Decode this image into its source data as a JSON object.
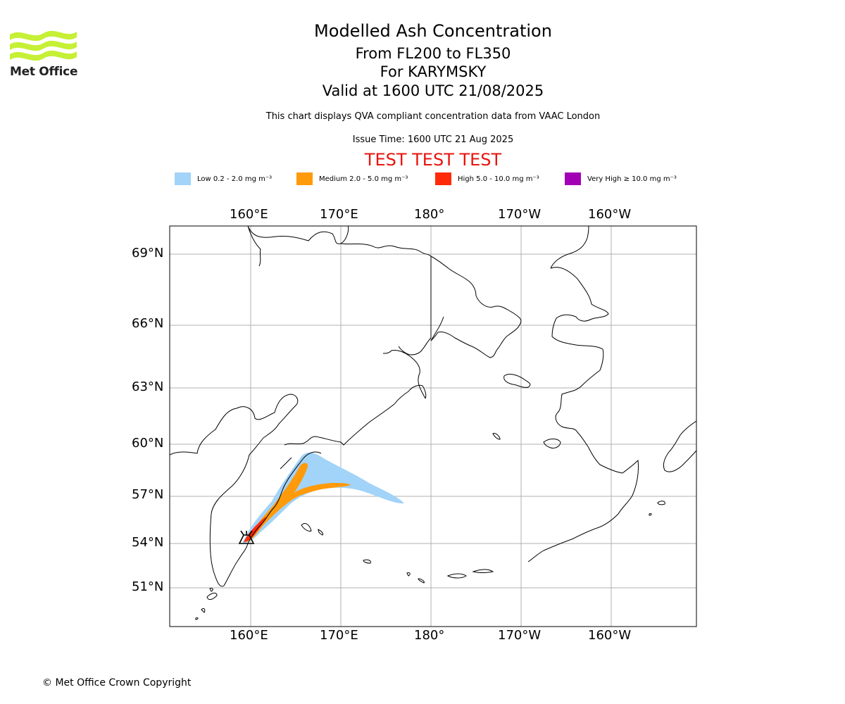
{
  "header": {
    "title": "Modelled Ash Concentration",
    "levels": "From FL200 to FL350",
    "volcano": "For KARYMSKY",
    "valid": "Valid at 1600 UTC 21/08/2025",
    "qva_note": "This chart displays QVA compliant concentration data from VAAC London",
    "issue_time": "Issue Time: 1600 UTC 21 Aug 2025",
    "test_banner": "TEST TEST TEST"
  },
  "logo": {
    "text": "Met Office",
    "color": "#c6f035"
  },
  "legend": [
    {
      "label": "Low 0.2 - 2.0 mg m⁻³",
      "color": "#a2d3f8"
    },
    {
      "label": "Medium 2.0 - 5.0 mg m⁻³",
      "color": "#ff9a0a"
    },
    {
      "label": "High 5.0 - 10.0 mg m⁻³",
      "color": "#ff2a0a"
    },
    {
      "label": "Very High ≥ 10.0 mg m⁻³",
      "color": "#a200b4"
    }
  ],
  "axes": {
    "lon_ticks": [
      "160°E",
      "170°E",
      "180°",
      "170°W",
      "160°W"
    ],
    "lat_ticks": [
      "69°N",
      "66°N",
      "63°N",
      "60°N",
      "57°N",
      "54°N",
      "51°N"
    ]
  },
  "footer": {
    "copyright": "© Met Office Crown Copyright"
  }
}
